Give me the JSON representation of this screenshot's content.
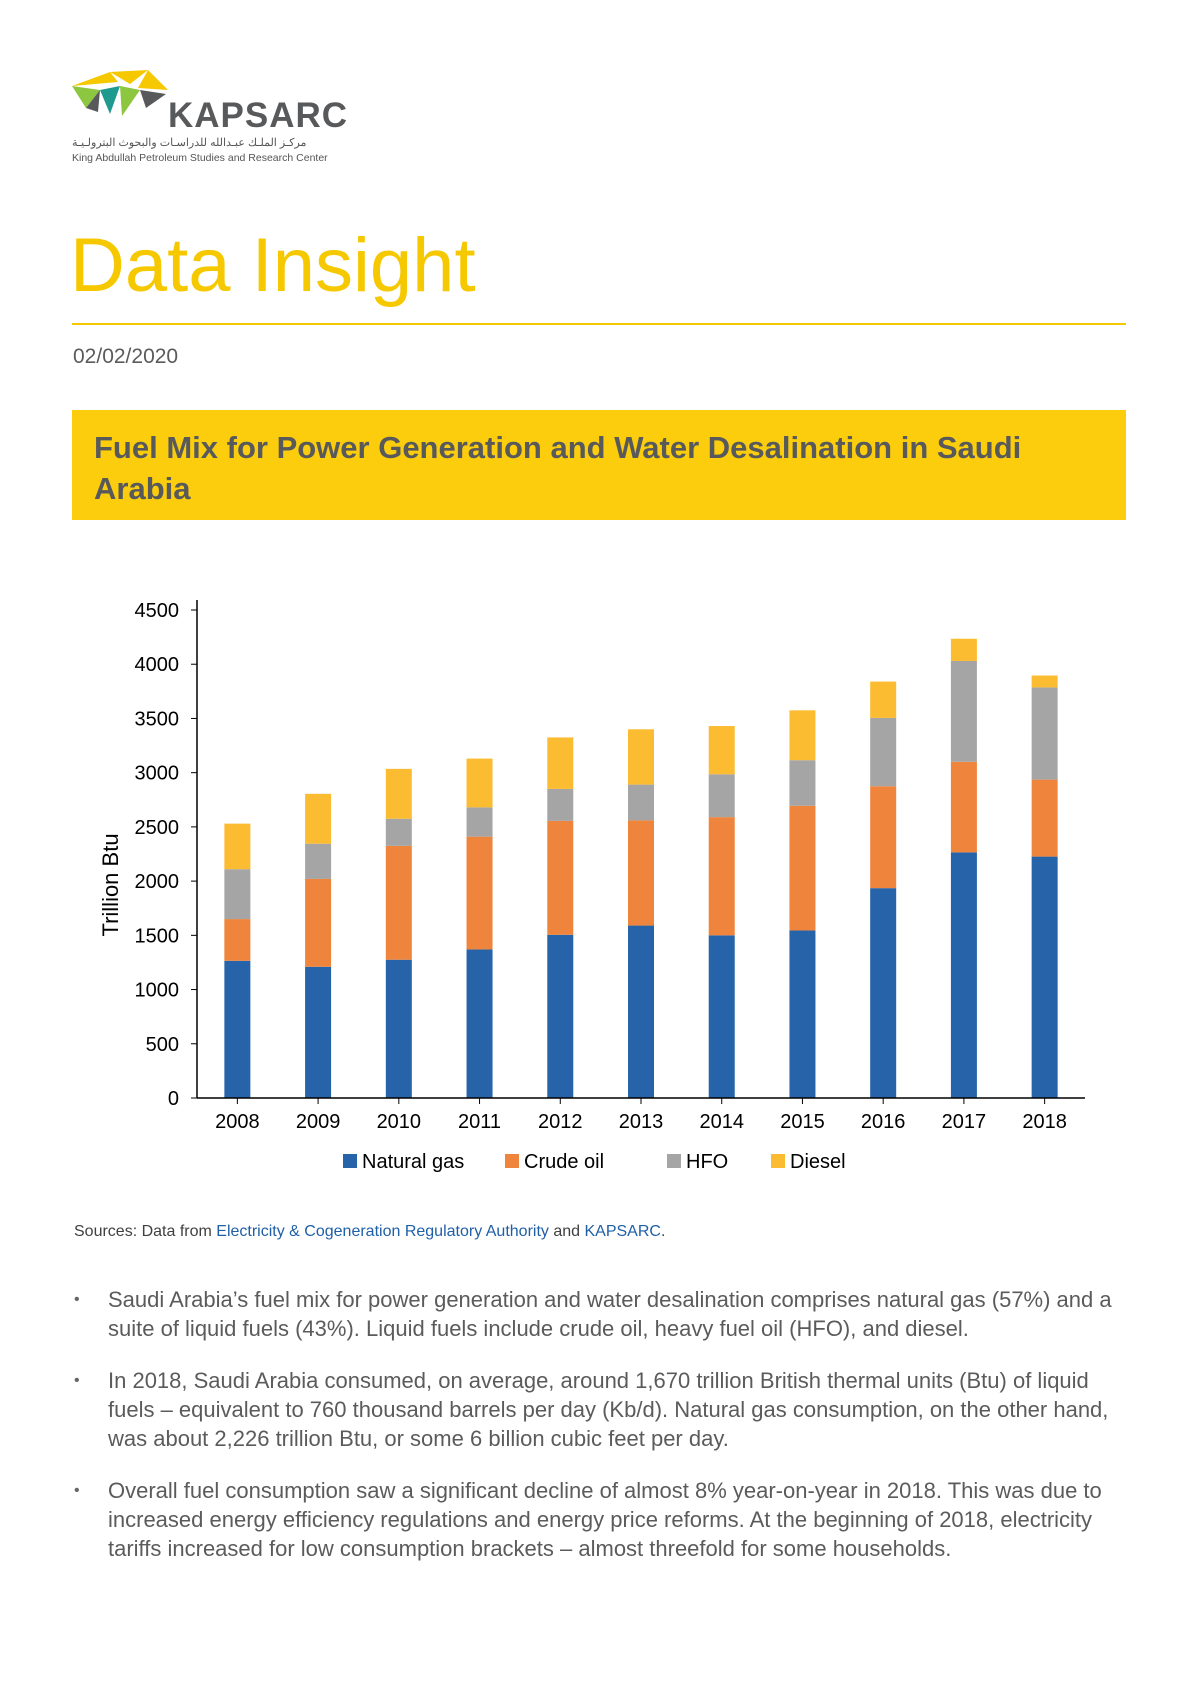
{
  "header": {
    "brand_name": "KAPSARC",
    "brand_arabic": "مركـز الملـك عبـدالله للدراسـات والبحوث البترولـيـة",
    "brand_english": "King Abdullah Petroleum Studies and Research Center",
    "logo_colors": {
      "yellow": "#f6c800",
      "green": "#8dc63f",
      "teal": "#1f9a8f",
      "gray": "#58595b"
    }
  },
  "document": {
    "type": "Data Insight",
    "date": "02/02/2020",
    "title": "Fuel Mix for Power Generation and Water Desalination in Saudi Arabia",
    "accent_color": "#f6c800"
  },
  "chart_data": {
    "type": "bar",
    "stacked": true,
    "title": "",
    "xlabel": "",
    "ylabel": "Trillion Btu",
    "ylim": [
      0,
      4500
    ],
    "yticks": [
      "0",
      "500",
      "1000",
      "1500",
      "2000",
      "2500",
      "3000",
      "3500",
      "4000",
      "4500"
    ],
    "grid": false,
    "legend_position": "bottom",
    "categories": [
      "2008",
      "2009",
      "2010",
      "2011",
      "2012",
      "2013",
      "2014",
      "2015",
      "2016",
      "2017",
      "2018"
    ],
    "series": [
      {
        "name": "Natural gas",
        "color": "#2663a8",
        "values": [
          1265,
          1210,
          1275,
          1370,
          1505,
          1590,
          1500,
          1545,
          1935,
          2265,
          2226
        ]
      },
      {
        "name": "Crude oil",
        "color": "#ef843c",
        "values": [
          385,
          810,
          1050,
          1040,
          1050,
          970,
          1090,
          1150,
          940,
          835,
          710
        ]
      },
      {
        "name": "HFO",
        "color": "#a5a5a5",
        "values": [
          460,
          325,
          250,
          270,
          295,
          330,
          395,
          420,
          630,
          930,
          850
        ]
      },
      {
        "name": "Diesel",
        "color": "#fcbc32",
        "values": [
          420,
          460,
          460,
          450,
          475,
          510,
          445,
          460,
          335,
          205,
          110
        ]
      }
    ]
  },
  "sources": {
    "prefix": "Sources: Data from ",
    "link1": "Electricity & Cogeneration Regulatory Authority",
    "middle": " and ",
    "link2": "KAPSARC",
    "suffix": "."
  },
  "bullets": [
    "Saudi Arabia’s fuel mix for power generation and water desalination comprises natural gas (57%) and a suite of liquid fuels (43%). Liquid fuels include crude oil, heavy fuel oil (HFO), and diesel.",
    "In 2018, Saudi Arabia consumed, on average, around 1,670 trillion British thermal units (Btu) of liquid fuels – equivalent to 760 thousand barrels per day (Kb/d). Natural gas consumption, on the other hand, was about 2,226 trillion Btu, or some 6 billion cubic feet per day.",
    "Overall fuel consumption saw a significant decline of almost 8% year-on-year in 2018. This was due to increased energy efficiency regulations and energy price reforms. At the beginning of 2018, electricity tariffs increased for low consumption brackets – almost threefold for some households."
  ],
  "bullet_marker": "•"
}
